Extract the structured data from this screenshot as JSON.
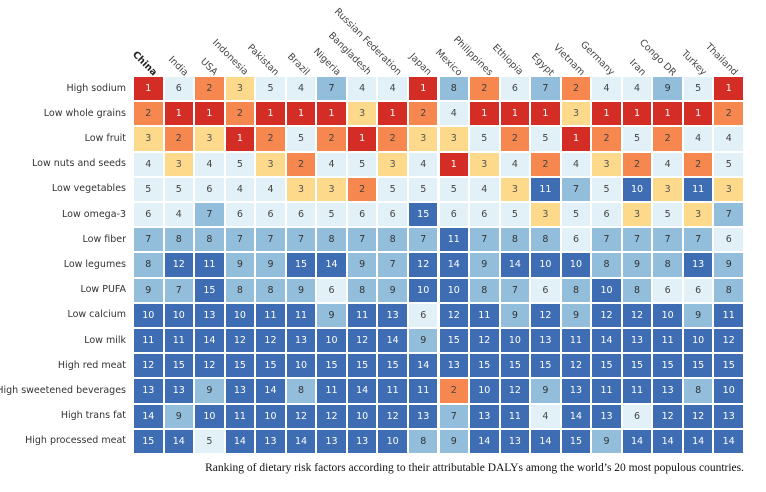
{
  "chart_data": {
    "type": "heatmap",
    "caption": "Ranking of dietary risk factors according to their attributable DALYs among the world’s 20 most populous countries.",
    "columns": [
      "China",
      "India",
      "USA",
      "Indonesia",
      "Pakistan",
      "Brazil",
      "Nigeria",
      "Bangladesh",
      "Russian Federation",
      "Japan",
      "Mexico",
      "Philippines",
      "Ethiopia",
      "Egypt",
      "Vietnam",
      "Germany",
      "Iran",
      "Congo DR",
      "Turkey",
      "Thailand"
    ],
    "rows": [
      "High sodium",
      "Low whole grains",
      "Low fruit",
      "Low nuts and seeds",
      "Low vegetables",
      "Low omega-3",
      "Low fiber",
      "Low legumes",
      "Low PUFA",
      "Low calcium",
      "Low milk",
      "High red meat",
      "High sweetened beverages",
      "High trans fat",
      "High processed meat"
    ],
    "values": [
      [
        1,
        6,
        2,
        3,
        5,
        4,
        7,
        4,
        4,
        1,
        8,
        2,
        6,
        7,
        2,
        4,
        4,
        9,
        5,
        1
      ],
      [
        2,
        1,
        1,
        2,
        1,
        1,
        1,
        3,
        1,
        2,
        4,
        1,
        1,
        1,
        3,
        1,
        1,
        1,
        1,
        2
      ],
      [
        3,
        2,
        3,
        1,
        2,
        5,
        2,
        1,
        2,
        3,
        3,
        5,
        2,
        5,
        1,
        2,
        5,
        2,
        4,
        4
      ],
      [
        4,
        3,
        4,
        5,
        3,
        2,
        4,
        5,
        3,
        4,
        1,
        3,
        4,
        2,
        4,
        3,
        2,
        4,
        2,
        5
      ],
      [
        5,
        5,
        6,
        4,
        4,
        3,
        3,
        2,
        5,
        5,
        5,
        4,
        3,
        11,
        7,
        5,
        10,
        3,
        11,
        3
      ],
      [
        6,
        4,
        7,
        6,
        6,
        6,
        5,
        6,
        6,
        15,
        6,
        6,
        5,
        3,
        5,
        6,
        3,
        5,
        3,
        7
      ],
      [
        7,
        8,
        8,
        7,
        7,
        7,
        8,
        7,
        8,
        7,
        11,
        7,
        8,
        8,
        6,
        7,
        7,
        7,
        7,
        6
      ],
      [
        8,
        12,
        11,
        9,
        9,
        15,
        14,
        9,
        7,
        12,
        14,
        9,
        14,
        10,
        10,
        8,
        9,
        8,
        13,
        9
      ],
      [
        9,
        7,
        15,
        8,
        8,
        9,
        6,
        8,
        9,
        10,
        10,
        8,
        7,
        6,
        8,
        10,
        8,
        6,
        6,
        8
      ],
      [
        10,
        10,
        13,
        10,
        11,
        11,
        9,
        11,
        13,
        6,
        12,
        11,
        9,
        12,
        9,
        12,
        12,
        10,
        9,
        11
      ],
      [
        11,
        11,
        14,
        12,
        12,
        13,
        10,
        12,
        14,
        9,
        15,
        12,
        10,
        13,
        11,
        14,
        13,
        11,
        10,
        12
      ],
      [
        12,
        15,
        12,
        15,
        15,
        10,
        15,
        15,
        15,
        14,
        13,
        15,
        15,
        15,
        12,
        15,
        15,
        15,
        15,
        15
      ],
      [
        13,
        13,
        9,
        13,
        14,
        8,
        11,
        14,
        11,
        11,
        2,
        10,
        12,
        9,
        13,
        11,
        11,
        13,
        8,
        10
      ],
      [
        14,
        9,
        10,
        11,
        10,
        12,
        12,
        10,
        12,
        13,
        7,
        13,
        11,
        4,
        14,
        13,
        6,
        12,
        12,
        13
      ],
      [
        15,
        14,
        5,
        14,
        13,
        14,
        13,
        13,
        10,
        8,
        9,
        14,
        13,
        14,
        15,
        9,
        14,
        14,
        14,
        14
      ]
    ],
    "highlighted_column": "China",
    "color_scale": [
      {
        "rank": "1",
        "color": "#d42d26"
      },
      {
        "rank": "2",
        "color": "#f5874f"
      },
      {
        "rank": "3",
        "color": "#fdda8b"
      },
      {
        "rank": "4-6",
        "color": "#e2f1f8"
      },
      {
        "rank": "7-9",
        "color": "#92bddb"
      },
      {
        "rank": "10-15",
        "color": "#3e6db3"
      }
    ]
  }
}
